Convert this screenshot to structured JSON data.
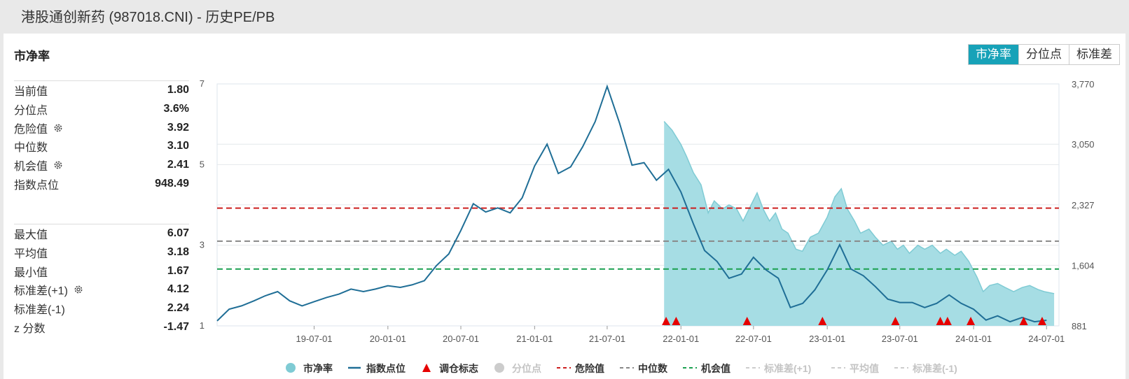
{
  "header": {
    "title": "港股通创新药 (987018.CNI) - 历史PE/PB"
  },
  "panel": {
    "title": "市净率"
  },
  "tabs": [
    {
      "label": "市净率",
      "active": true
    },
    {
      "label": "分位点",
      "active": false
    },
    {
      "label": "标准差",
      "active": false
    }
  ],
  "stats_top": [
    {
      "label": "当前值",
      "value": "1.80",
      "gear": false
    },
    {
      "label": "分位点",
      "value": "3.6%",
      "gear": false
    },
    {
      "label": "危险值",
      "value": "3.92",
      "gear": true
    },
    {
      "label": "中位数",
      "value": "3.10",
      "gear": false
    },
    {
      "label": "机会值",
      "value": "2.41",
      "gear": true
    },
    {
      "label": "指数点位",
      "value": "948.49",
      "gear": false
    }
  ],
  "stats_bottom": [
    {
      "label": "最大值",
      "value": "6.07",
      "gear": false
    },
    {
      "label": "平均值",
      "value": "3.18",
      "gear": false
    },
    {
      "label": "最小值",
      "value": "1.67",
      "gear": false
    },
    {
      "label": "标准差(+1)",
      "value": "4.12",
      "gear": true
    },
    {
      "label": "标准差(-1)",
      "value": "2.24",
      "gear": false
    },
    {
      "label": "z 分数",
      "value": "-1.47",
      "gear": false
    }
  ],
  "colors": {
    "pb_fill": "#a6dde4",
    "pb_line": "#7fcbd4",
    "index_line": "#1f6e96",
    "danger": "#cc1f1f",
    "median": "#888888",
    "opportunity": "#1aa050",
    "marker": "#e60000",
    "tab_active": "#17a2b8"
  },
  "chart_data": {
    "type": "area",
    "x_ticks": [
      "19-07-01",
      "20-01-01",
      "20-07-01",
      "21-01-01",
      "21-07-01",
      "22-01-01",
      "22-07-01",
      "23-01-01",
      "23-07-01",
      "24-01-01",
      "24-07-01"
    ],
    "x_range": [
      "2018-11-01",
      "2024-08-01"
    ],
    "y_left_ticks": [
      "7",
      "5",
      "3",
      "1"
    ],
    "y_left_range": [
      1,
      7
    ],
    "y_right_ticks": [
      "3,770",
      "3,050",
      "2,327",
      "1,604",
      "881"
    ],
    "y_right_range": [
      881,
      3770
    ],
    "reference_lines": [
      {
        "name": "危险值",
        "value": 3.92
      },
      {
        "name": "中位数",
        "value": 3.1
      },
      {
        "name": "机会值",
        "value": 2.41
      }
    ],
    "series": [
      {
        "name": "市净率",
        "axis": "left",
        "points": [
          [
            "2021-11-20",
            6.07
          ],
          [
            "2021-12-10",
            5.85
          ],
          [
            "2022-01-01",
            5.5
          ],
          [
            "2022-01-15",
            5.2
          ],
          [
            "2022-02-01",
            4.8
          ],
          [
            "2022-02-20",
            4.5
          ],
          [
            "2022-03-10",
            3.8
          ],
          [
            "2022-03-25",
            4.1
          ],
          [
            "2022-04-15",
            3.9
          ],
          [
            "2022-05-01",
            4.0
          ],
          [
            "2022-05-20",
            3.9
          ],
          [
            "2022-06-05",
            3.6
          ],
          [
            "2022-06-25",
            4.0
          ],
          [
            "2022-07-10",
            4.3
          ],
          [
            "2022-07-25",
            3.9
          ],
          [
            "2022-08-10",
            3.6
          ],
          [
            "2022-08-25",
            3.8
          ],
          [
            "2022-09-10",
            3.4
          ],
          [
            "2022-09-25",
            3.3
          ],
          [
            "2022-10-15",
            2.9
          ],
          [
            "2022-10-31",
            2.85
          ],
          [
            "2022-11-20",
            3.2
          ],
          [
            "2022-12-10",
            3.3
          ],
          [
            "2023-01-01",
            3.7
          ],
          [
            "2023-01-20",
            4.2
          ],
          [
            "2023-02-05",
            4.4
          ],
          [
            "2023-02-20",
            3.9
          ],
          [
            "2023-03-10",
            3.6
          ],
          [
            "2023-03-25",
            3.3
          ],
          [
            "2023-04-15",
            3.4
          ],
          [
            "2023-05-01",
            3.2
          ],
          [
            "2023-05-20",
            3.0
          ],
          [
            "2023-06-10",
            3.1
          ],
          [
            "2023-06-25",
            2.9
          ],
          [
            "2023-07-10",
            3.0
          ],
          [
            "2023-07-25",
            2.8
          ],
          [
            "2023-08-15",
            3.0
          ],
          [
            "2023-09-01",
            2.9
          ],
          [
            "2023-09-20",
            3.0
          ],
          [
            "2023-10-10",
            2.8
          ],
          [
            "2023-10-25",
            2.9
          ],
          [
            "2023-11-15",
            2.75
          ],
          [
            "2023-12-01",
            2.85
          ],
          [
            "2023-12-20",
            2.6
          ],
          [
            "2024-01-10",
            2.2
          ],
          [
            "2024-01-25",
            1.85
          ],
          [
            "2024-02-10",
            2.0
          ],
          [
            "2024-03-01",
            2.05
          ],
          [
            "2024-03-20",
            1.95
          ],
          [
            "2024-04-10",
            1.85
          ],
          [
            "2024-05-01",
            1.95
          ],
          [
            "2024-05-20",
            2.0
          ],
          [
            "2024-06-10",
            1.9
          ],
          [
            "2024-06-25",
            1.85
          ],
          [
            "2024-07-20",
            1.8
          ]
        ]
      },
      {
        "name": "指数点位",
        "axis": "right",
        "points": [
          [
            "2018-11-01",
            940
          ],
          [
            "2018-12-01",
            1080
          ],
          [
            "2019-01-01",
            1120
          ],
          [
            "2019-02-01",
            1180
          ],
          [
            "2019-03-01",
            1240
          ],
          [
            "2019-04-01",
            1290
          ],
          [
            "2019-05-01",
            1180
          ],
          [
            "2019-06-01",
            1120
          ],
          [
            "2019-07-01",
            1170
          ],
          [
            "2019-08-01",
            1220
          ],
          [
            "2019-09-01",
            1260
          ],
          [
            "2019-10-01",
            1320
          ],
          [
            "2019-11-01",
            1290
          ],
          [
            "2019-12-01",
            1320
          ],
          [
            "2020-01-01",
            1360
          ],
          [
            "2020-02-01",
            1340
          ],
          [
            "2020-03-01",
            1370
          ],
          [
            "2020-04-01",
            1420
          ],
          [
            "2020-05-01",
            1600
          ],
          [
            "2020-06-01",
            1740
          ],
          [
            "2020-07-01",
            2020
          ],
          [
            "2020-08-01",
            2340
          ],
          [
            "2020-09-01",
            2240
          ],
          [
            "2020-10-01",
            2290
          ],
          [
            "2020-11-01",
            2230
          ],
          [
            "2020-12-01",
            2410
          ],
          [
            "2021-01-01",
            2790
          ],
          [
            "2021-02-01",
            3050
          ],
          [
            "2021-03-01",
            2700
          ],
          [
            "2021-04-01",
            2780
          ],
          [
            "2021-05-01",
            3020
          ],
          [
            "2021-06-01",
            3320
          ],
          [
            "2021-07-01",
            3740
          ],
          [
            "2021-08-01",
            3300
          ],
          [
            "2021-09-01",
            2800
          ],
          [
            "2021-10-01",
            2830
          ],
          [
            "2021-11-01",
            2620
          ],
          [
            "2021-12-01",
            2750
          ],
          [
            "2022-01-01",
            2480
          ],
          [
            "2022-02-01",
            2100
          ],
          [
            "2022-03-01",
            1780
          ],
          [
            "2022-04-01",
            1650
          ],
          [
            "2022-05-01",
            1450
          ],
          [
            "2022-06-01",
            1500
          ],
          [
            "2022-07-01",
            1700
          ],
          [
            "2022-08-01",
            1550
          ],
          [
            "2022-09-01",
            1450
          ],
          [
            "2022-10-01",
            1100
          ],
          [
            "2022-11-01",
            1150
          ],
          [
            "2022-12-01",
            1310
          ],
          [
            "2023-01-01",
            1550
          ],
          [
            "2023-02-01",
            1850
          ],
          [
            "2023-03-01",
            1560
          ],
          [
            "2023-04-01",
            1480
          ],
          [
            "2023-05-01",
            1350
          ],
          [
            "2023-06-01",
            1200
          ],
          [
            "2023-07-01",
            1160
          ],
          [
            "2023-08-01",
            1160
          ],
          [
            "2023-09-01",
            1100
          ],
          [
            "2023-10-01",
            1150
          ],
          [
            "2023-11-01",
            1250
          ],
          [
            "2023-12-01",
            1150
          ],
          [
            "2024-01-01",
            1080
          ],
          [
            "2024-02-01",
            950
          ],
          [
            "2024-03-01",
            1000
          ],
          [
            "2024-04-01",
            930
          ],
          [
            "2024-05-01",
            980
          ],
          [
            "2024-06-01",
            930
          ],
          [
            "2024-07-01",
            948
          ]
        ]
      }
    ],
    "rebalance_markers": [
      "2021-11-25",
      "2021-12-20",
      "2022-06-15",
      "2022-12-20",
      "2023-06-20",
      "2023-10-10",
      "2023-10-28",
      "2023-12-25",
      "2024-05-05",
      "2024-06-20"
    ],
    "legend": [
      {
        "label": "市净率",
        "kind": "circle",
        "color": "#7fcbd4",
        "active": true
      },
      {
        "label": "指数点位",
        "kind": "line",
        "color": "#1f6e96",
        "active": true
      },
      {
        "label": "调仓标志",
        "kind": "triangle",
        "color": "#e60000",
        "active": true
      },
      {
        "label": "分位点",
        "kind": "circle",
        "color": "#cccccc",
        "active": false
      },
      {
        "label": "危险值",
        "kind": "dash",
        "color": "#cc1f1f",
        "active": true
      },
      {
        "label": "中位数",
        "kind": "dash",
        "color": "#888888",
        "active": true
      },
      {
        "label": "机会值",
        "kind": "dash",
        "color": "#1aa050",
        "active": true
      },
      {
        "label": "标准差(+1)",
        "kind": "dash",
        "color": "#cccccc",
        "active": false
      },
      {
        "label": "平均值",
        "kind": "dash",
        "color": "#cccccc",
        "active": false
      },
      {
        "label": "标准差(-1)",
        "kind": "dash",
        "color": "#cccccc",
        "active": false
      }
    ],
    "legend_position": "bottom",
    "grid": true
  }
}
